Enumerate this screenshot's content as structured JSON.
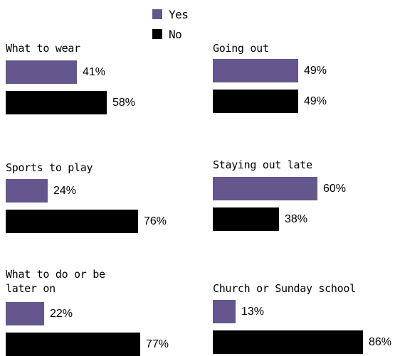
{
  "colors": {
    "yes": "#65578d",
    "no": "#000000"
  },
  "legend": [
    {
      "label": "Yes",
      "series": "yes"
    },
    {
      "label": "No",
      "series": "no"
    }
  ],
  "chart_data": {
    "type": "bar",
    "orientation": "horizontal",
    "legend_position": "top-center",
    "value_unit": "%",
    "series_names": [
      "Yes",
      "No"
    ],
    "panels": [
      {
        "title": "What to wear",
        "yes": 41,
        "no": 58
      },
      {
        "title": "Going out",
        "yes": 49,
        "no": 49
      },
      {
        "title": "Sports to play",
        "yes": 24,
        "no": 76
      },
      {
        "title": "Staying out late",
        "yes": 60,
        "no": 38
      },
      {
        "title": "What to do or be\nlater on",
        "yes": 22,
        "no": 77
      },
      {
        "title": "Church or Sunday school",
        "yes": 13,
        "no": 86
      }
    ]
  }
}
